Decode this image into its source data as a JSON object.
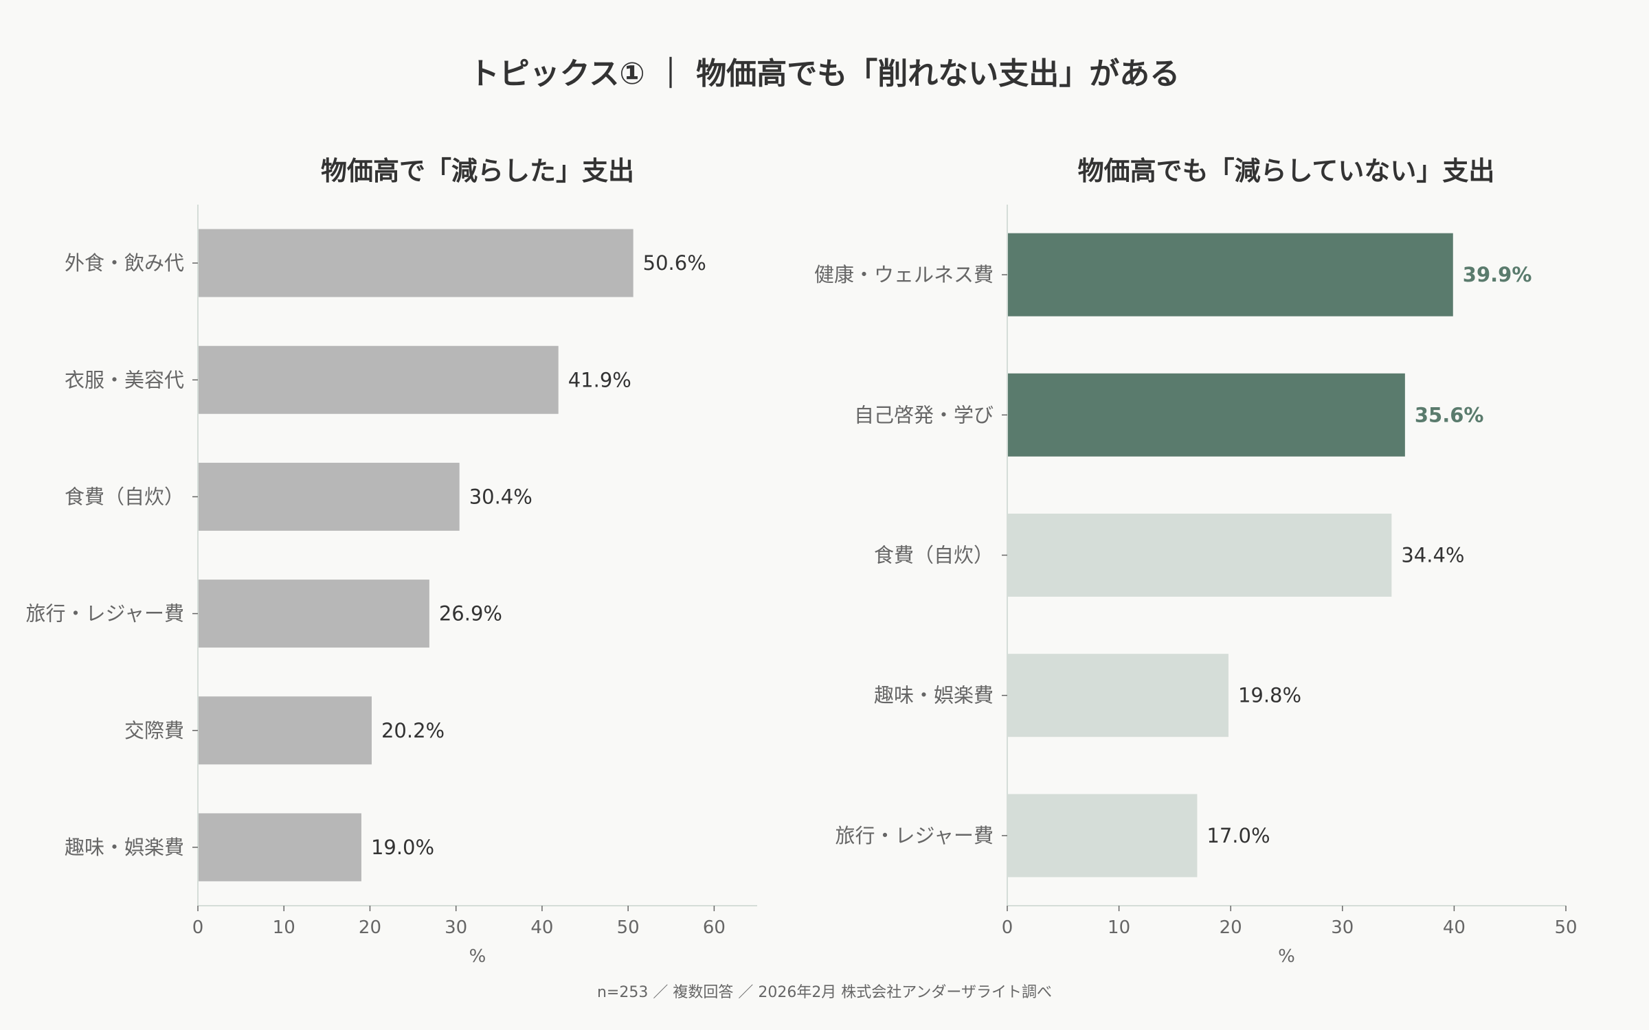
{
  "title": "トピックス① ｜ 物価高でも「削れない支出」がある",
  "footnote": "n=253 ／ 複数回答 ／ 2026年2月 株式会社アンダーザライト調べ",
  "colors": {
    "background": "#f9f9f7",
    "reduced": "#b7b7b7",
    "highlight": "#5a7b6d",
    "muted": "#d5ddd8",
    "axis": "#d5ddd8",
    "text": "#333333",
    "label": "#666666"
  },
  "chart_data": [
    {
      "type": "bar",
      "orientation": "horizontal",
      "title": "物価高で「減らした」支出",
      "categories": [
        "外食・飲み代",
        "衣服・美容代",
        "食費（自炊）",
        "旅行・レジャー費",
        "交際費",
        "趣味・娯楽費"
      ],
      "values": [
        50.6,
        41.9,
        30.4,
        26.9,
        20.2,
        19.0
      ],
      "data_labels": [
        "50.6%",
        "41.9%",
        "30.4%",
        "26.9%",
        "20.2%",
        "19.0%"
      ],
      "highlight": [
        false,
        false,
        false,
        false,
        false,
        false
      ],
      "xlabel": "%",
      "xlim": [
        0,
        65
      ],
      "xticks": [
        0,
        10,
        20,
        30,
        40,
        50,
        60
      ],
      "grid": false
    },
    {
      "type": "bar",
      "orientation": "horizontal",
      "title": "物価高でも「減らしていない」支出",
      "categories": [
        "健康・ウェルネス費",
        "自己啓発・学び",
        "食費（自炊）",
        "趣味・娯楽費",
        "旅行・レジャー費"
      ],
      "values": [
        39.9,
        35.6,
        34.4,
        19.8,
        17.0
      ],
      "data_labels": [
        "39.9%",
        "35.6%",
        "34.4%",
        "19.8%",
        "17.0%"
      ],
      "highlight": [
        true,
        true,
        false,
        false,
        false
      ],
      "xlabel": "%",
      "xlim": [
        0,
        50
      ],
      "xticks": [
        0,
        10,
        20,
        30,
        40,
        50
      ],
      "grid": false
    }
  ]
}
